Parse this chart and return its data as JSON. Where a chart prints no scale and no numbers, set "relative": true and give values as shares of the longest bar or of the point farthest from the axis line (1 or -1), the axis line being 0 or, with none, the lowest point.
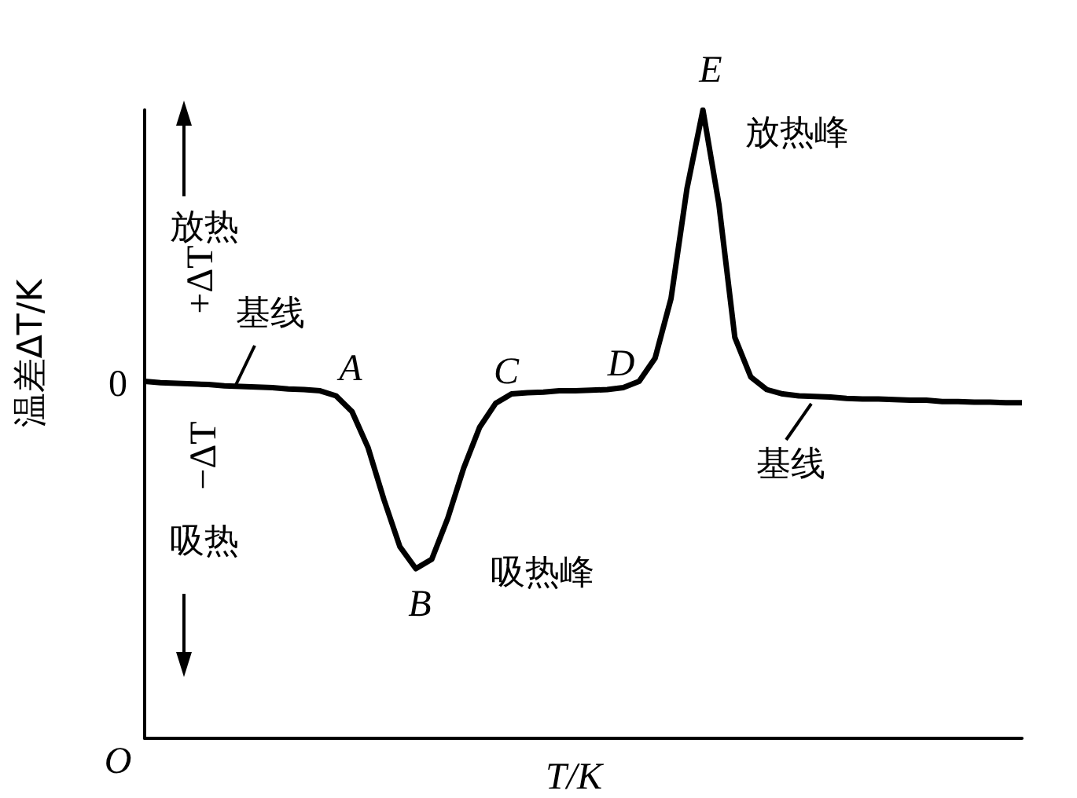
{
  "chart_data": {
    "type": "line",
    "relative": true,
    "ylabel": "温差ΔT/K",
    "xlabel": "T/K",
    "color": "#000000",
    "marker": "none",
    "grid": false,
    "categories": [
      null,
      null,
      null,
      null,
      null,
      null,
      null,
      null,
      null,
      null,
      null,
      null,
      null,
      null,
      null,
      null,
      null,
      null,
      null,
      null,
      null,
      null,
      null,
      null,
      null,
      null,
      null,
      null,
      null,
      null,
      null,
      null,
      null,
      null,
      null,
      null,
      null,
      null,
      null,
      null,
      null,
      null,
      null,
      null,
      null,
      null,
      null,
      null,
      null,
      null,
      null,
      null,
      null,
      null,
      null,
      null
    ],
    "values": [
      0.568,
      0.566,
      0.565,
      0.564,
      0.563,
      0.561,
      0.56,
      0.559,
      0.558,
      0.556,
      0.555,
      0.553,
      0.545,
      0.52,
      0.463,
      0.38,
      0.305,
      0.27,
      0.285,
      0.35,
      0.43,
      0.495,
      0.533,
      0.548,
      0.55,
      0.551,
      0.553,
      0.553,
      0.554,
      0.555,
      0.558,
      0.568,
      0.605,
      0.7,
      0.875,
      1,
      0.85,
      0.638,
      0.575,
      0.555,
      0.548,
      0.545,
      0.544,
      0.543,
      0.541,
      0.54,
      0.54,
      0.539,
      0.538,
      0.538,
      0.536,
      0.536,
      0.535,
      0.535,
      0.534,
      0.534
    ],
    "annotations": [
      "A",
      "B",
      "C",
      "D",
      "E",
      "放热峰",
      "吸热峰",
      "基线",
      "基线",
      "放热",
      "吸热",
      "+ΔT",
      "−ΔT",
      "0",
      "O"
    ]
  }
}
